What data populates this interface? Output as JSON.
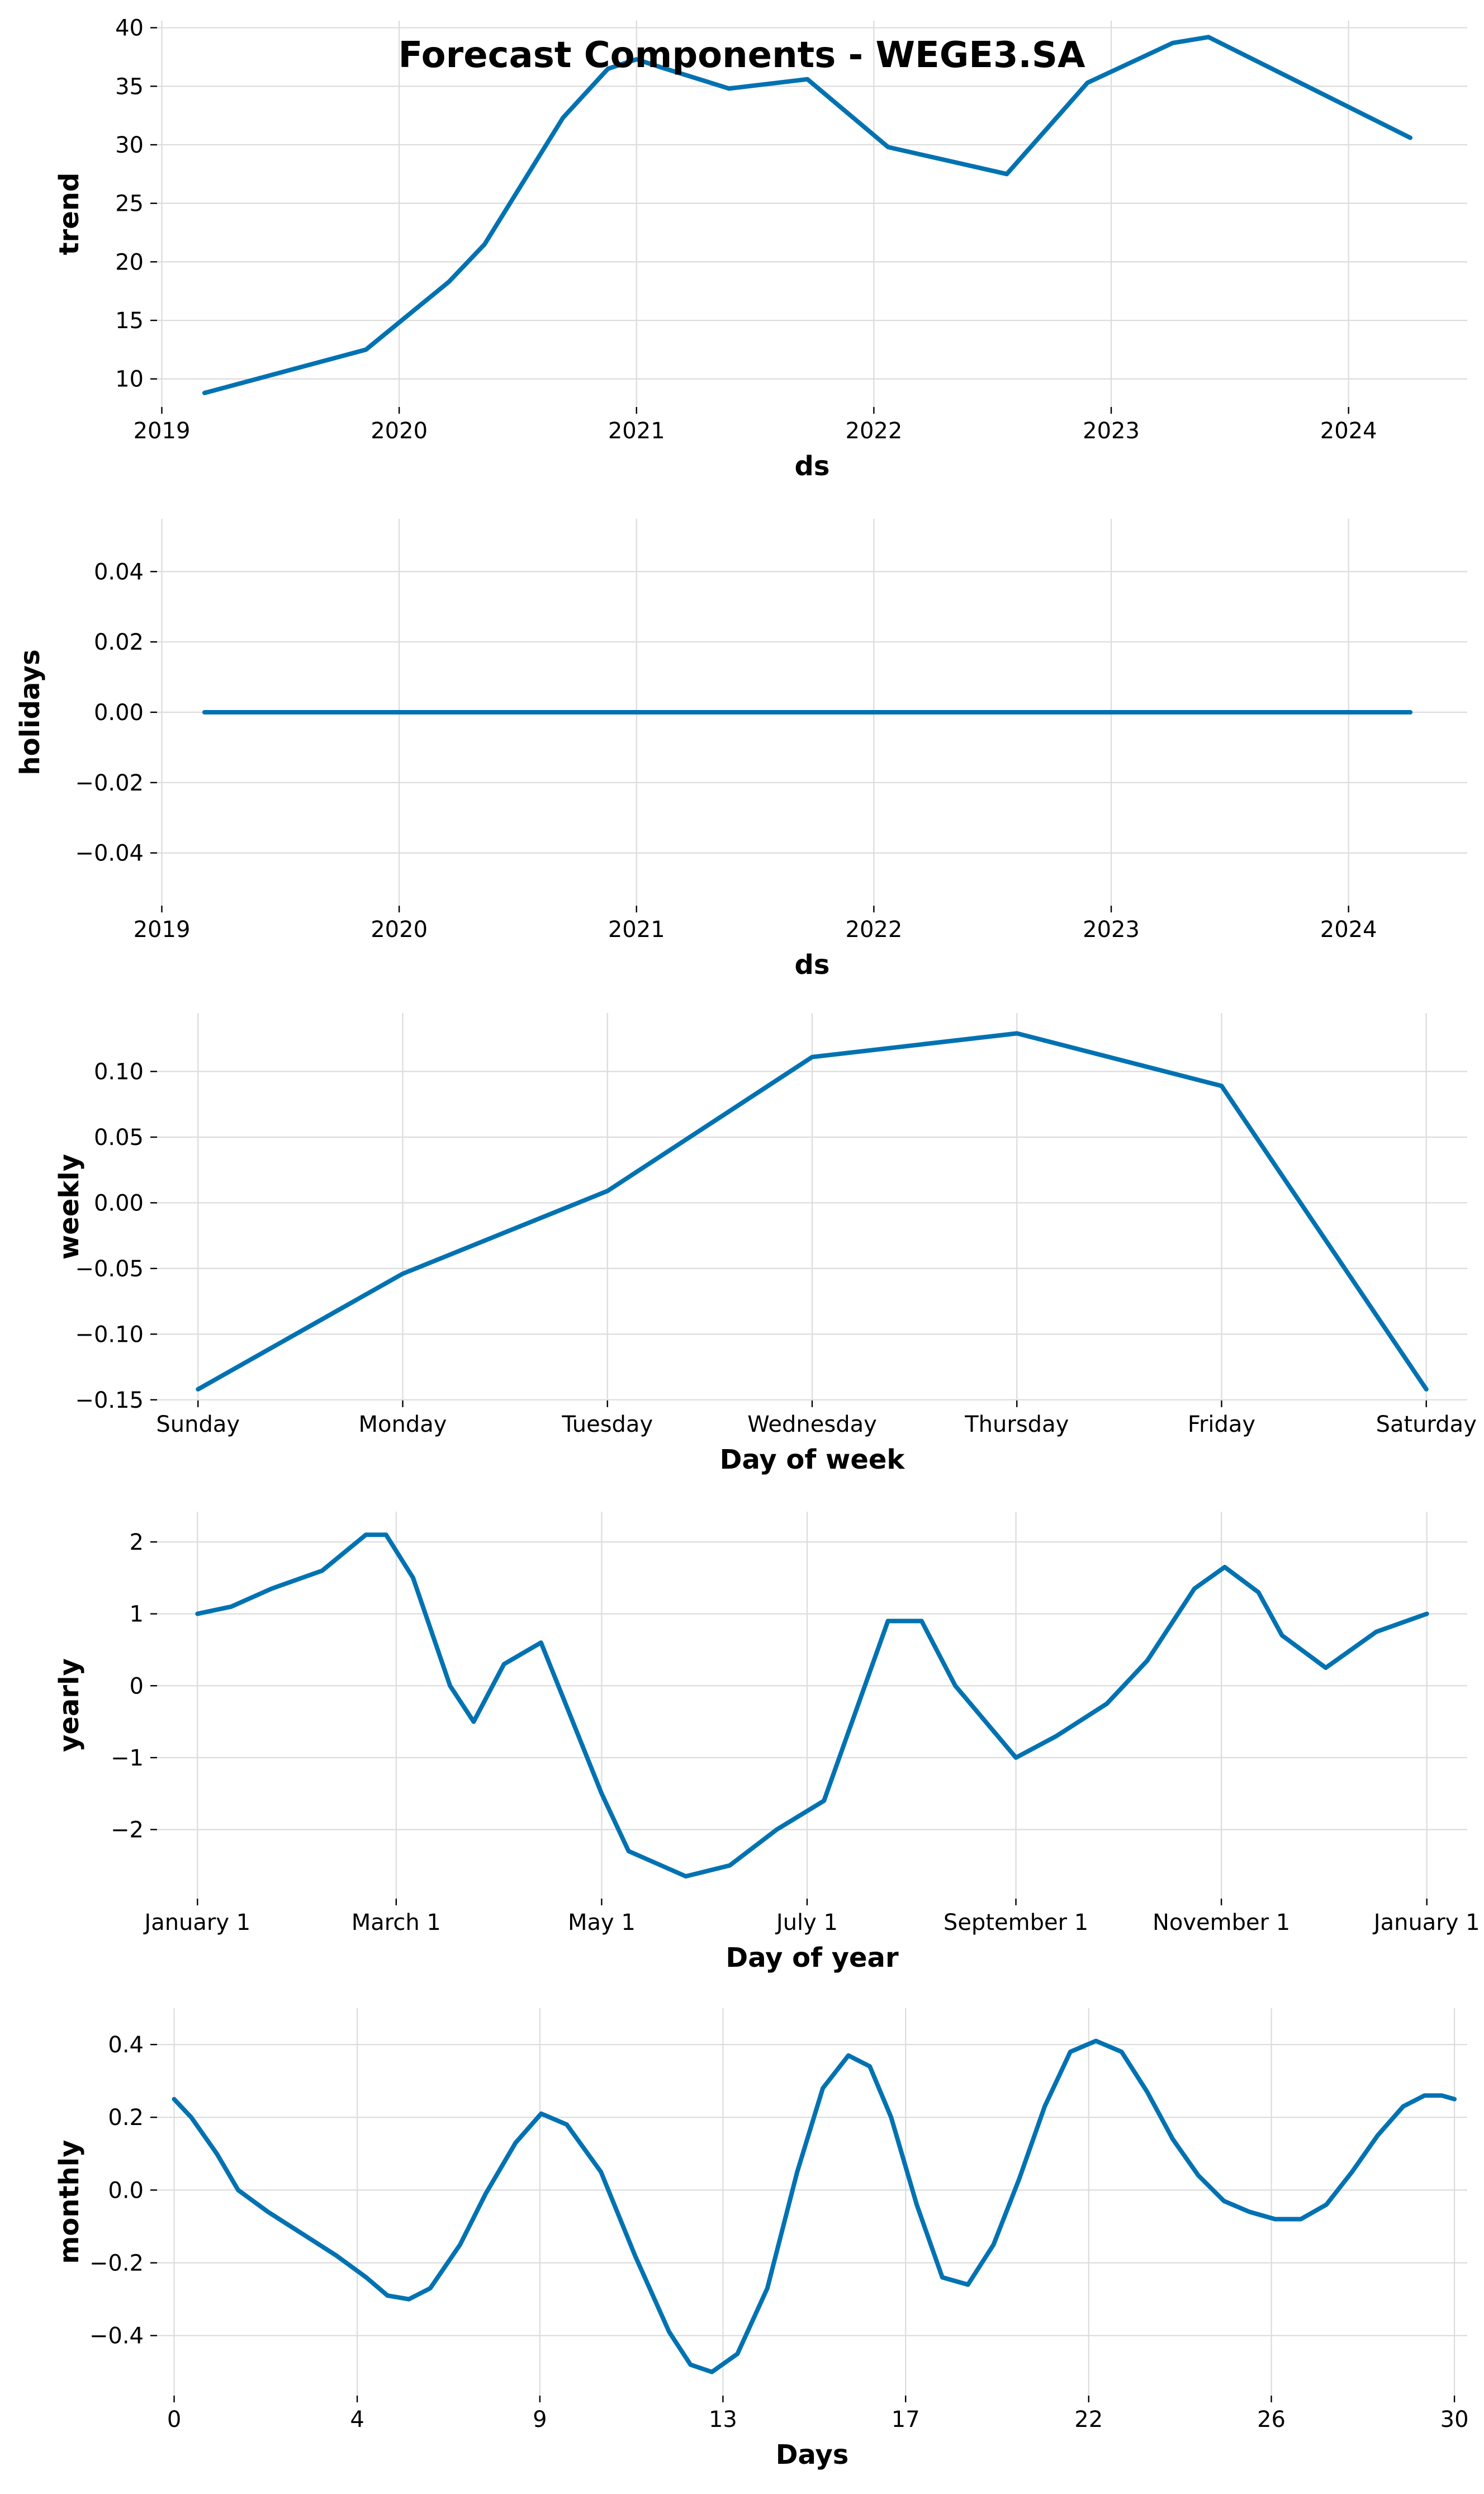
{
  "title": "Forecast Components - WEGE3.SA",
  "series_color": "#0072B2",
  "chart_data": [
    {
      "type": "line",
      "ylabel": "trend",
      "xlabel": "ds",
      "x_ticks": [
        "2019",
        "2020",
        "2021",
        "2022",
        "2023",
        "2024"
      ],
      "y_ticks": [
        "10",
        "15",
        "20",
        "25",
        "30",
        "35",
        "40"
      ],
      "xlim": [
        2018.98,
        2024.5
      ],
      "ylim": [
        7.6,
        40.6
      ],
      "grid": true,
      "x": [
        2019.18,
        2019.86,
        2020.21,
        2020.36,
        2020.69,
        2020.88,
        2021.0,
        2021.09,
        2021.39,
        2021.72,
        2022.06,
        2022.56,
        2022.9,
        2023.26,
        2023.41,
        2024.26
      ],
      "y": [
        8.8,
        12.5,
        18.3,
        21.5,
        32.3,
        36.5,
        37.3,
        36.7,
        34.8,
        35.6,
        29.8,
        27.5,
        35.3,
        38.7,
        39.2,
        30.6
      ]
    },
    {
      "type": "line",
      "ylabel": "holidays",
      "xlabel": "ds",
      "x_ticks": [
        "2019",
        "2020",
        "2021",
        "2022",
        "2023",
        "2024"
      ],
      "y_ticks": [
        "0.04",
        "0.02",
        "0.00",
        "−0.02",
        "−0.04"
      ],
      "xlim": [
        2018.98,
        2024.5
      ],
      "ylim": [
        -0.055,
        0.055
      ],
      "grid": true,
      "x": [
        2019.18,
        2024.26
      ],
      "y": [
        0,
        0
      ]
    },
    {
      "type": "line",
      "ylabel": "weekly",
      "xlabel": "Day of week",
      "categories": [
        "Sunday",
        "Monday",
        "Tuesday",
        "Wednesday",
        "Thursday",
        "Friday",
        "Saturday"
      ],
      "y_ticks": [
        "0.10",
        "0.05",
        "0.00",
        "−0.05",
        "−0.10",
        "−0.15"
      ],
      "xlim": [
        -0.2,
        6.2
      ],
      "ylim": [
        -0.1505,
        0.1445
      ],
      "grid": true,
      "x": [
        0,
        1,
        2,
        3,
        4,
        5,
        6
      ],
      "y": [
        -0.142,
        -0.054,
        0.009,
        0.111,
        0.129,
        0.089,
        -0.142
      ]
    },
    {
      "type": "line",
      "ylabel": "yearly",
      "xlabel": "Day of year",
      "x_ticks": [
        "January 1",
        "March 1",
        "May 1",
        "July 1",
        "September 1",
        "November 1",
        "January 1"
      ],
      "x_tick_values": [
        0,
        59,
        120,
        181,
        243,
        304,
        365
      ],
      "y_ticks": [
        "2",
        "1",
        "0",
        "−1",
        "−2"
      ],
      "xlim": [
        -12,
        377
      ],
      "ylim": [
        -2.96,
        2.42
      ],
      "grid": true,
      "x": [
        0,
        10,
        22,
        37,
        50,
        56,
        64,
        75,
        82,
        91,
        102,
        120,
        128,
        145,
        158,
        172,
        186,
        205,
        215,
        225,
        243,
        255,
        270,
        282,
        296,
        305,
        315,
        322,
        335,
        350,
        365
      ],
      "y": [
        1.0,
        1.1,
        1.35,
        1.6,
        2.1,
        2.1,
        1.5,
        0.0,
        -0.5,
        0.3,
        0.6,
        -1.5,
        -2.3,
        -2.65,
        -2.5,
        -2.0,
        -1.6,
        0.9,
        0.9,
        0.0,
        -1.0,
        -0.7,
        -0.25,
        0.35,
        1.35,
        1.65,
        1.3,
        0.7,
        0.25,
        0.75,
        1.0
      ]
    },
    {
      "type": "line",
      "ylabel": "monthly",
      "xlabel": "Days",
      "x_ticks": [
        "0",
        "4",
        "9",
        "13",
        "17",
        "22",
        "26",
        "30"
      ],
      "x_tick_values": [
        0,
        4.29,
        8.57,
        12.86,
        17.14,
        21.43,
        25.71,
        30
      ],
      "y_ticks": [
        "0.4",
        "0.2",
        "0.0",
        "−0.2",
        "−0.4"
      ],
      "xlim": [
        -0.4,
        30.3
      ],
      "ylim": [
        -0.565,
        0.5
      ],
      "grid": true,
      "x": [
        0,
        0.4,
        1,
        1.5,
        2.2,
        3,
        3.8,
        4.5,
        5,
        5.5,
        6,
        6.7,
        7.3,
        8,
        8.6,
        9.2,
        10,
        10.8,
        11.6,
        12.1,
        12.6,
        13.2,
        13.9,
        14.6,
        15.2,
        15.8,
        16.3,
        16.8,
        17.4,
        18,
        18.6,
        19.2,
        19.8,
        20.4,
        21,
        21.6,
        22.2,
        22.8,
        23.4,
        24,
        24.6,
        25.2,
        25.8,
        26.4,
        27,
        27.6,
        28.2,
        28.8,
        29.3,
        29.7,
        30
      ],
      "y": [
        0.25,
        0.2,
        0.1,
        0.0,
        -0.06,
        -0.12,
        -0.18,
        -0.24,
        -0.29,
        -0.3,
        -0.27,
        -0.15,
        -0.01,
        0.13,
        0.21,
        0.18,
        0.05,
        -0.18,
        -0.39,
        -0.48,
        -0.5,
        -0.45,
        -0.27,
        0.05,
        0.28,
        0.37,
        0.34,
        0.2,
        -0.04,
        -0.24,
        -0.26,
        -0.15,
        0.03,
        0.23,
        0.38,
        0.41,
        0.38,
        0.27,
        0.14,
        0.04,
        -0.03,
        -0.06,
        -0.08,
        -0.08,
        -0.04,
        0.05,
        0.15,
        0.23,
        0.26,
        0.26,
        0.25
      ]
    }
  ]
}
